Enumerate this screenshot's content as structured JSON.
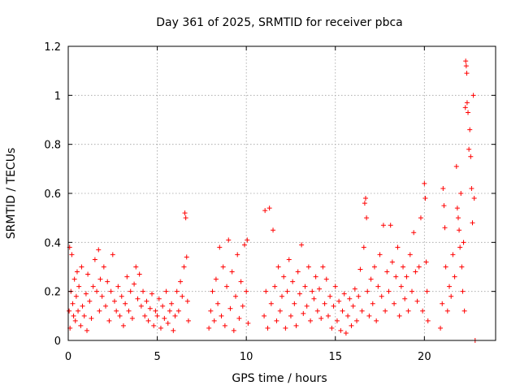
{
  "chart_data": {
    "type": "scatter",
    "title": "Day 361 of 2025, SRMTID for receiver pbca",
    "xlabel": "GPS time / hours",
    "ylabel": "SRMTID / TECUs",
    "xlim": [
      0,
      24
    ],
    "ylim": [
      0,
      1.2
    ],
    "xticks": [
      0,
      5,
      10,
      15,
      20
    ],
    "xtick_labels": [
      "0",
      "5",
      "10",
      "15",
      "20"
    ],
    "yticks": [
      0,
      0.2,
      0.4,
      0.6,
      0.8,
      1.0,
      1.2
    ],
    "ytick_labels": [
      "0",
      "0.2",
      "0.4",
      "0.6",
      "0.8",
      "1",
      "1.2"
    ],
    "grid": true,
    "marker": "+",
    "color": "#ff0000",
    "series": [
      {
        "name": "SRMTID",
        "points": [
          [
            0.05,
            0.12
          ],
          [
            0.08,
            0.38
          ],
          [
            0.1,
            0.05
          ],
          [
            0.15,
            0.2
          ],
          [
            0.2,
            0.35
          ],
          [
            0.25,
            0.15
          ],
          [
            0.3,
            0.1
          ],
          [
            0.35,
            0.25
          ],
          [
            0.4,
            0.08
          ],
          [
            0.45,
            0.18
          ],
          [
            0.5,
            0.28
          ],
          [
            0.55,
            0.12
          ],
          [
            0.6,
            0.22
          ],
          [
            0.7,
            0.06
          ],
          [
            0.75,
            0.3
          ],
          [
            0.8,
            0.14
          ],
          [
            0.9,
            0.1
          ],
          [
            1.0,
            0.19
          ],
          [
            1.05,
            0.04
          ],
          [
            1.1,
            0.27
          ],
          [
            1.2,
            0.16
          ],
          [
            1.3,
            0.09
          ],
          [
            1.4,
            0.22
          ],
          [
            1.5,
            0.33
          ],
          [
            1.6,
            0.2
          ],
          [
            1.7,
            0.37
          ],
          [
            1.75,
            0.12
          ],
          [
            1.8,
            0.25
          ],
          [
            1.9,
            0.18
          ],
          [
            2.0,
            0.3
          ],
          [
            2.1,
            0.14
          ],
          [
            2.2,
            0.24
          ],
          [
            2.3,
            0.08
          ],
          [
            2.4,
            0.2
          ],
          [
            2.5,
            0.35
          ],
          [
            2.6,
            0.16
          ],
          [
            2.7,
            0.12
          ],
          [
            2.8,
            0.22
          ],
          [
            2.9,
            0.1
          ],
          [
            3.0,
            0.18
          ],
          [
            3.1,
            0.06
          ],
          [
            3.2,
            0.15
          ],
          [
            3.3,
            0.26
          ],
          [
            3.4,
            0.12
          ],
          [
            3.5,
            0.2
          ],
          [
            3.6,
            0.09
          ],
          [
            3.7,
            0.23
          ],
          [
            3.8,
            0.3
          ],
          [
            3.9,
            0.17
          ],
          [
            4.0,
            0.27
          ],
          [
            4.1,
            0.14
          ],
          [
            4.2,
            0.2
          ],
          [
            4.3,
            0.1
          ],
          [
            4.4,
            0.16
          ],
          [
            4.5,
            0.08
          ],
          [
            4.6,
            0.13
          ],
          [
            4.7,
            0.19
          ],
          [
            4.8,
            0.06
          ],
          [
            4.9,
            0.12
          ],
          [
            5.0,
            0.1
          ],
          [
            5.1,
            0.17
          ],
          [
            5.2,
            0.05
          ],
          [
            5.3,
            0.14
          ],
          [
            5.4,
            0.09
          ],
          [
            5.5,
            0.2
          ],
          [
            5.6,
            0.07
          ],
          [
            5.7,
            0.12
          ],
          [
            5.8,
            0.15
          ],
          [
            5.9,
            0.04
          ],
          [
            6.0,
            0.1
          ],
          [
            6.1,
            0.2
          ],
          [
            6.2,
            0.12
          ],
          [
            6.3,
            0.24
          ],
          [
            6.4,
            0.18
          ],
          [
            6.5,
            0.3
          ],
          [
            6.55,
            0.52
          ],
          [
            6.6,
            0.5
          ],
          [
            6.65,
            0.34
          ],
          [
            6.7,
            0.16
          ],
          [
            6.75,
            0.08
          ],
          [
            7.9,
            0.05
          ],
          [
            8.0,
            0.12
          ],
          [
            8.1,
            0.2
          ],
          [
            8.2,
            0.08
          ],
          [
            8.3,
            0.25
          ],
          [
            8.4,
            0.15
          ],
          [
            8.5,
            0.38
          ],
          [
            8.6,
            0.1
          ],
          [
            8.7,
            0.3
          ],
          [
            8.8,
            0.06
          ],
          [
            8.9,
            0.22
          ],
          [
            9.0,
            0.41
          ],
          [
            9.1,
            0.13
          ],
          [
            9.2,
            0.28
          ],
          [
            9.3,
            0.04
          ],
          [
            9.4,
            0.18
          ],
          [
            9.5,
            0.35
          ],
          [
            9.6,
            0.09
          ],
          [
            9.7,
            0.24
          ],
          [
            9.8,
            0.14
          ],
          [
            9.9,
            0.39
          ],
          [
            10.0,
            0.2
          ],
          [
            10.05,
            0.41
          ],
          [
            10.1,
            0.07
          ],
          [
            11.0,
            0.1
          ],
          [
            11.05,
            0.53
          ],
          [
            11.1,
            0.2
          ],
          [
            11.2,
            0.05
          ],
          [
            11.3,
            0.54
          ],
          [
            11.4,
            0.15
          ],
          [
            11.5,
            0.45
          ],
          [
            11.6,
            0.22
          ],
          [
            11.7,
            0.08
          ],
          [
            11.8,
            0.3
          ],
          [
            11.9,
            0.12
          ],
          [
            12.0,
            0.18
          ],
          [
            12.1,
            0.26
          ],
          [
            12.2,
            0.05
          ],
          [
            12.3,
            0.2
          ],
          [
            12.4,
            0.33
          ],
          [
            12.5,
            0.1
          ],
          [
            12.6,
            0.24
          ],
          [
            12.7,
            0.15
          ],
          [
            12.8,
            0.06
          ],
          [
            12.9,
            0.28
          ],
          [
            13.0,
            0.19
          ],
          [
            13.1,
            0.39
          ],
          [
            13.2,
            0.11
          ],
          [
            13.3,
            0.22
          ],
          [
            13.4,
            0.14
          ],
          [
            13.5,
            0.3
          ],
          [
            13.6,
            0.08
          ],
          [
            13.7,
            0.2
          ],
          [
            13.8,
            0.17
          ],
          [
            13.9,
            0.26
          ],
          [
            14.0,
            0.12
          ],
          [
            14.1,
            0.21
          ],
          [
            14.2,
            0.09
          ],
          [
            14.3,
            0.3
          ],
          [
            14.4,
            0.15
          ],
          [
            14.5,
            0.25
          ],
          [
            14.6,
            0.1
          ],
          [
            14.7,
            0.18
          ],
          [
            14.8,
            0.05
          ],
          [
            14.9,
            0.14
          ],
          [
            15.0,
            0.22
          ],
          [
            15.1,
            0.08
          ],
          [
            15.2,
            0.16
          ],
          [
            15.3,
            0.04
          ],
          [
            15.4,
            0.12
          ],
          [
            15.5,
            0.19
          ],
          [
            15.6,
            0.03
          ],
          [
            15.7,
            0.1
          ],
          [
            15.8,
            0.17
          ],
          [
            15.9,
            0.06
          ],
          [
            16.0,
            0.14
          ],
          [
            16.1,
            0.21
          ],
          [
            16.2,
            0.08
          ],
          [
            16.3,
            0.18
          ],
          [
            16.4,
            0.29
          ],
          [
            16.5,
            0.12
          ],
          [
            16.6,
            0.38
          ],
          [
            16.65,
            0.56
          ],
          [
            16.7,
            0.58
          ],
          [
            16.75,
            0.5
          ],
          [
            16.8,
            0.2
          ],
          [
            16.9,
            0.1
          ],
          [
            17.0,
            0.25
          ],
          [
            17.1,
            0.15
          ],
          [
            17.2,
            0.3
          ],
          [
            17.3,
            0.08
          ],
          [
            17.4,
            0.22
          ],
          [
            17.5,
            0.35
          ],
          [
            17.6,
            0.18
          ],
          [
            17.7,
            0.47
          ],
          [
            17.8,
            0.12
          ],
          [
            17.9,
            0.28
          ],
          [
            18.0,
            0.2
          ],
          [
            18.1,
            0.47
          ],
          [
            18.2,
            0.32
          ],
          [
            18.3,
            0.15
          ],
          [
            18.4,
            0.26
          ],
          [
            18.5,
            0.38
          ],
          [
            18.6,
            0.1
          ],
          [
            18.7,
            0.22
          ],
          [
            18.8,
            0.3
          ],
          [
            18.9,
            0.17
          ],
          [
            19.0,
            0.26
          ],
          [
            19.1,
            0.12
          ],
          [
            19.2,
            0.35
          ],
          [
            19.3,
            0.2
          ],
          [
            19.4,
            0.44
          ],
          [
            19.5,
            0.28
          ],
          [
            19.6,
            0.16
          ],
          [
            19.7,
            0.3
          ],
          [
            19.8,
            0.5
          ],
          [
            19.9,
            0.12
          ],
          [
            20.0,
            0.64
          ],
          [
            20.05,
            0.58
          ],
          [
            20.1,
            0.32
          ],
          [
            20.15,
            0.2
          ],
          [
            20.2,
            0.08
          ],
          [
            20.9,
            0.05
          ],
          [
            21.0,
            0.15
          ],
          [
            21.05,
            0.62
          ],
          [
            21.1,
            0.55
          ],
          [
            21.15,
            0.46
          ],
          [
            21.2,
            0.3
          ],
          [
            21.3,
            0.12
          ],
          [
            21.4,
            0.22
          ],
          [
            21.5,
            0.18
          ],
          [
            21.6,
            0.35
          ],
          [
            21.7,
            0.26
          ],
          [
            21.8,
            0.71
          ],
          [
            21.85,
            0.54
          ],
          [
            21.9,
            0.5
          ],
          [
            21.95,
            0.45
          ],
          [
            22.0,
            0.38
          ],
          [
            22.05,
            0.6
          ],
          [
            22.1,
            0.3
          ],
          [
            22.15,
            0.2
          ],
          [
            22.2,
            0.4
          ],
          [
            22.25,
            0.12
          ],
          [
            22.3,
            0.95
          ],
          [
            22.32,
            1.14
          ],
          [
            22.35,
            1.12
          ],
          [
            22.38,
            1.09
          ],
          [
            22.4,
            0.97
          ],
          [
            22.45,
            0.93
          ],
          [
            22.5,
            0.78
          ],
          [
            22.55,
            0.86
          ],
          [
            22.6,
            0.75
          ],
          [
            22.65,
            0.62
          ],
          [
            22.7,
            0.48
          ],
          [
            22.75,
            1.0
          ],
          [
            22.8,
            0.58
          ],
          [
            22.85,
            0.0
          ]
        ]
      }
    ]
  }
}
